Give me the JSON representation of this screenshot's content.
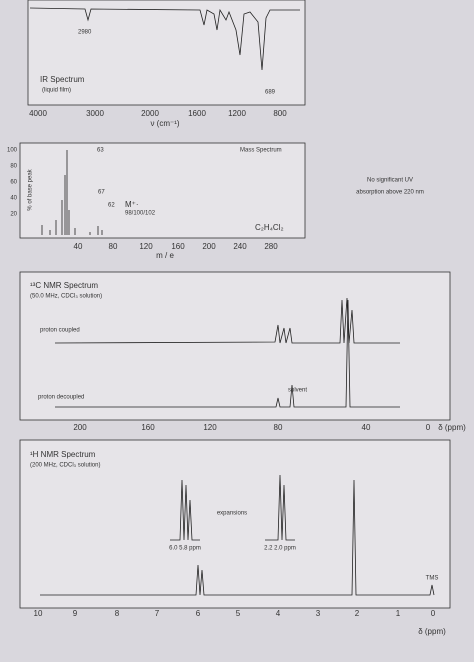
{
  "ir": {
    "title": "IR Spectrum",
    "subtitle": "(liquid film)",
    "peak_labels": [
      "2980",
      "689"
    ],
    "x_ticks": [
      "4000",
      "3000",
      "2000",
      "1600",
      "1200",
      "800"
    ],
    "x_label": "ν (cm⁻¹)"
  },
  "mass": {
    "title": "Mass Spectrum",
    "y_label": "% of base peak",
    "y_ticks": [
      "100",
      "80",
      "60",
      "40",
      "20"
    ],
    "peak_labels": [
      "63",
      "67",
      "62",
      "M⁺·",
      "98/100/102"
    ],
    "formula": "C₂H₄Cl₂",
    "x_ticks": [
      "40",
      "80",
      "120",
      "160",
      "200",
      "240",
      "280"
    ],
    "x_label": "m / e"
  },
  "uv": {
    "lines": [
      "No significant UV",
      "absorption above 220 nm"
    ]
  },
  "c13": {
    "title": "¹³C NMR Spectrum",
    "subtitle": "(50.0 MHz, CDCl₃ solution)",
    "coupled": "proton coupled",
    "solvent": "solvent",
    "decoupled": "proton decoupled",
    "x_ticks": [
      "200",
      "160",
      "120",
      "80",
      "40",
      "0"
    ],
    "x_label": "δ (ppm)"
  },
  "h1": {
    "title": "¹H NMR Spectrum",
    "subtitle": "(200 MHz, CDCl₃ solution)",
    "expansions": "expansions",
    "exp1": "6.0   5.8   ppm",
    "exp2": "2.2   2.0   ppm",
    "tms": "TMS",
    "x_ticks": [
      "10",
      "9",
      "8",
      "7",
      "6",
      "5",
      "4",
      "3",
      "2",
      "1",
      "0"
    ],
    "x_label": "δ (ppm)"
  }
}
